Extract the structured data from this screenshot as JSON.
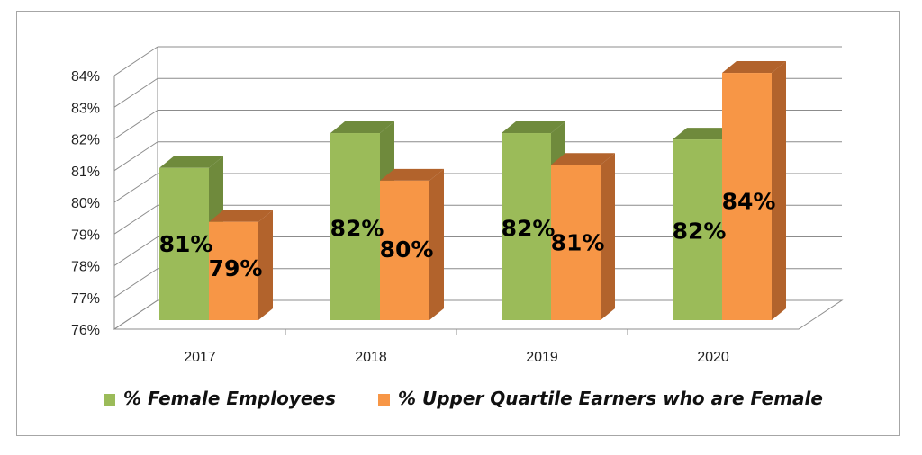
{
  "chart_data": {
    "type": "bar",
    "style": "3d-clustered-column",
    "categories": [
      "2017",
      "2018",
      "2019",
      "2020"
    ],
    "series": [
      {
        "name": "% Female Employees",
        "values": [
          80.8,
          81.9,
          81.9,
          81.7
        ],
        "data_labels": [
          "81%",
          "82%",
          "82%",
          "82%"
        ],
        "color": "#9bbb59",
        "side_color": "#6f8a3c"
      },
      {
        "name": "% Upper Quartile Earners who are Female",
        "values": [
          79.1,
          80.4,
          80.9,
          83.8
        ],
        "data_labels": [
          "79%",
          "80%",
          "81%",
          "84%"
        ],
        "color": "#f79646",
        "side_color": "#b2632c"
      }
    ],
    "yticks": [
      "76%",
      "77%",
      "78%",
      "79%",
      "80%",
      "81%",
      "82%",
      "83%",
      "84%"
    ],
    "ylim": [
      76,
      84
    ],
    "grid": true,
    "legend_position": "bottom",
    "title": "",
    "xlabel": "",
    "ylabel": ""
  }
}
